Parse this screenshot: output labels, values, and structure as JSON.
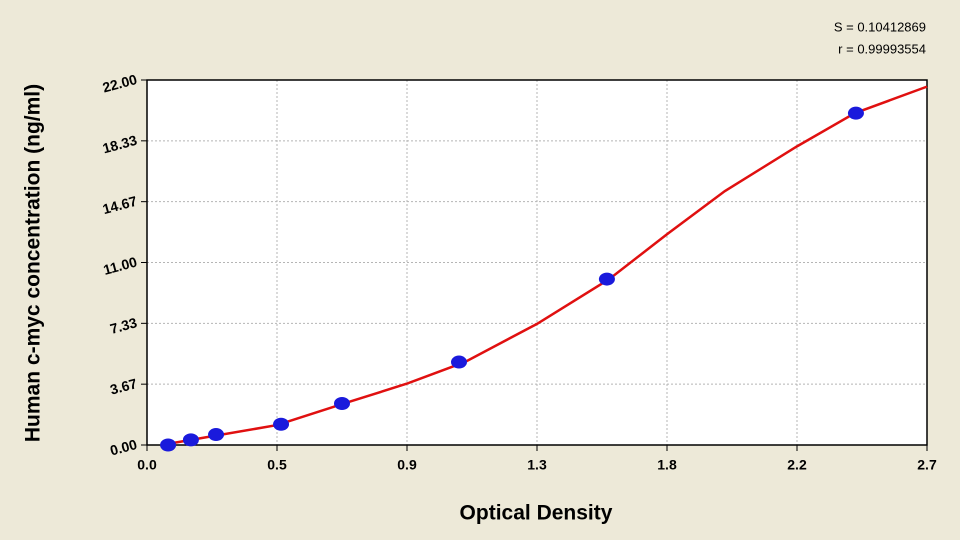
{
  "chart_data": {
    "type": "scatter",
    "annotations": [
      "S = 0.10412869",
      "r = 0.99993554"
    ],
    "xlabel": "Optical Density",
    "ylabel": "Human c-myc concentration (ng/ml)",
    "xlim": [
      0,
      2.7
    ],
    "ylim": [
      0,
      22
    ],
    "xticks": [
      {
        "value": 0,
        "label": "0.0"
      },
      {
        "value": 0.45,
        "label": "0.5"
      },
      0.9,
      {
        "value": 1.35,
        "label": "1.3"
      },
      1.8,
      {
        "value": 2.25,
        "label": "2.2"
      },
      2.7
    ],
    "yticks": [
      {
        "value": 0,
        "label": "0.00"
      },
      {
        "value": 3.6667,
        "label": "3.67"
      },
      {
        "value": 7.3333,
        "label": "7.33"
      },
      {
        "value": 11,
        "label": "11.00"
      },
      {
        "value": 14.6667,
        "label": "14.67"
      },
      {
        "value": 18.3333,
        "label": "18.33"
      },
      {
        "value": 22,
        "label": "22.00"
      }
    ],
    "grid": true,
    "series": [
      {
        "color": "#1a1adc",
        "x": [
          0.073,
          0.152,
          0.239,
          0.464,
          0.675,
          1.08,
          1.592,
          2.454
        ],
        "values": [
          0,
          0.31,
          0.63,
          1.25,
          2.5,
          5,
          10,
          20
        ]
      },
      {
        "color": "#e01010",
        "x": [
          0.05,
          0.2,
          0.45,
          0.7,
          0.9,
          1.1,
          1.35,
          1.6,
          1.8,
          2.0,
          2.25,
          2.45,
          2.7
        ],
        "values": [
          0.0,
          0.45,
          1.2,
          2.6,
          3.7,
          5.0,
          7.3,
          10.0,
          12.7,
          15.3,
          18.0,
          20.0,
          21.6
        ]
      }
    ]
  }
}
